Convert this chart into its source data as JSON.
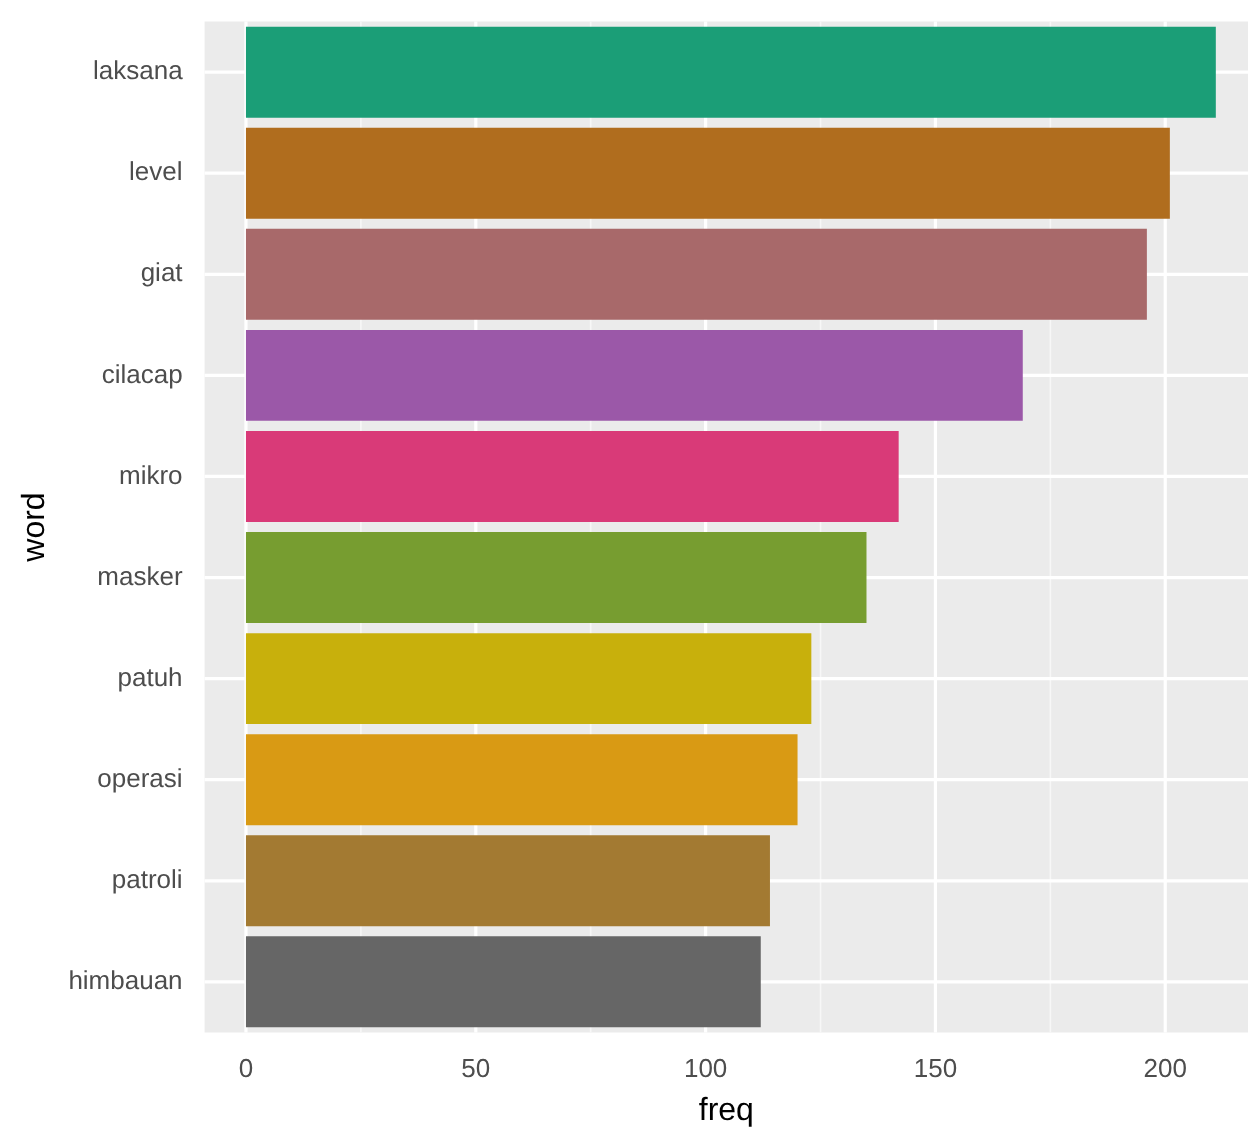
{
  "chart_data": {
    "type": "bar",
    "orientation": "horizontal",
    "xlabel": "freq",
    "ylabel": "word",
    "categories": [
      "laksana",
      "level",
      "giat",
      "cilacap",
      "mikro",
      "masker",
      "patuh",
      "operasi",
      "patroli",
      "himbauan"
    ],
    "values": [
      211,
      201,
      196,
      169,
      142,
      135,
      123,
      120,
      114,
      112
    ],
    "colors": [
      "#1b9e77",
      "#b06d1e",
      "#a8696a",
      "#9b58a8",
      "#d93a78",
      "#779d30",
      "#c8b00c",
      "#d99a14",
      "#a37a32",
      "#666666"
    ],
    "xlim": [
      -9,
      218
    ],
    "xticks": [
      0,
      50,
      100,
      150,
      200
    ],
    "grid": true,
    "legend": false
  }
}
